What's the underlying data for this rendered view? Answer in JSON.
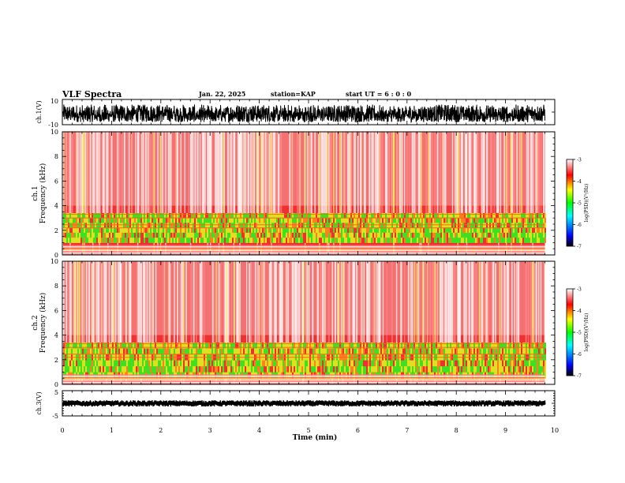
{
  "header": {
    "title": "VLF Spectra",
    "date": "Jan. 22, 2025",
    "station": "station=KAP",
    "start_ut": "start UT =  6 : 0 : 0"
  },
  "chart_data": [
    {
      "type": "line",
      "name": "ch1_waveform",
      "ylabel": "ch.1(V)",
      "ylim": [
        -10,
        10
      ],
      "yticks": [
        "10",
        "-10"
      ],
      "xlim": [
        0,
        10
      ],
      "data_extent_min": 9.8,
      "amplitude_range_v": [
        -8,
        6
      ]
    },
    {
      "type": "heatmap",
      "name": "ch1_spectrogram",
      "ylabel_top": "ch.1",
      "ylabel": "Frequency (kHz)",
      "ylim": [
        0,
        10
      ],
      "yticks": [
        "0",
        "2",
        "4",
        "6",
        "8",
        "10"
      ],
      "xlim": [
        0,
        10
      ],
      "data_extent_min": 9.8,
      "band_khz": [
        1.0,
        3.4
      ],
      "colorbar": {
        "label": "log(PSD)(V²/Hz)",
        "range": [
          -7,
          -3
        ],
        "ticks": [
          "-3",
          "-4",
          "-5",
          "-6",
          "-7"
        ]
      }
    },
    {
      "type": "heatmap",
      "name": "ch2_spectrogram",
      "ylabel_top": "ch.2",
      "ylabel": "Frequency (kHz)",
      "ylim": [
        0,
        10
      ],
      "yticks": [
        "0",
        "2",
        "4",
        "6",
        "8",
        "10"
      ],
      "xlim": [
        0,
        10
      ],
      "data_extent_min": 9.8,
      "band_khz": [
        0.5,
        3.4
      ],
      "colorbar": {
        "label": "log(PSD)(V²/Hz)",
        "range": [
          -7,
          -3
        ],
        "ticks": [
          "-3",
          "-4",
          "-5",
          "-6",
          "-7"
        ]
      }
    },
    {
      "type": "line",
      "name": "ch3_waveform",
      "ylabel": "ch.3(V)",
      "ylim": [
        -5,
        5
      ],
      "yticks": [
        "5",
        "-5"
      ],
      "xlim": [
        0,
        10
      ],
      "data_extent_min": 9.8,
      "xlabel": "Time (min)",
      "xticks": [
        "0",
        "1",
        "2",
        "3",
        "4",
        "5",
        "6",
        "7",
        "8",
        "9",
        "10"
      ]
    }
  ]
}
